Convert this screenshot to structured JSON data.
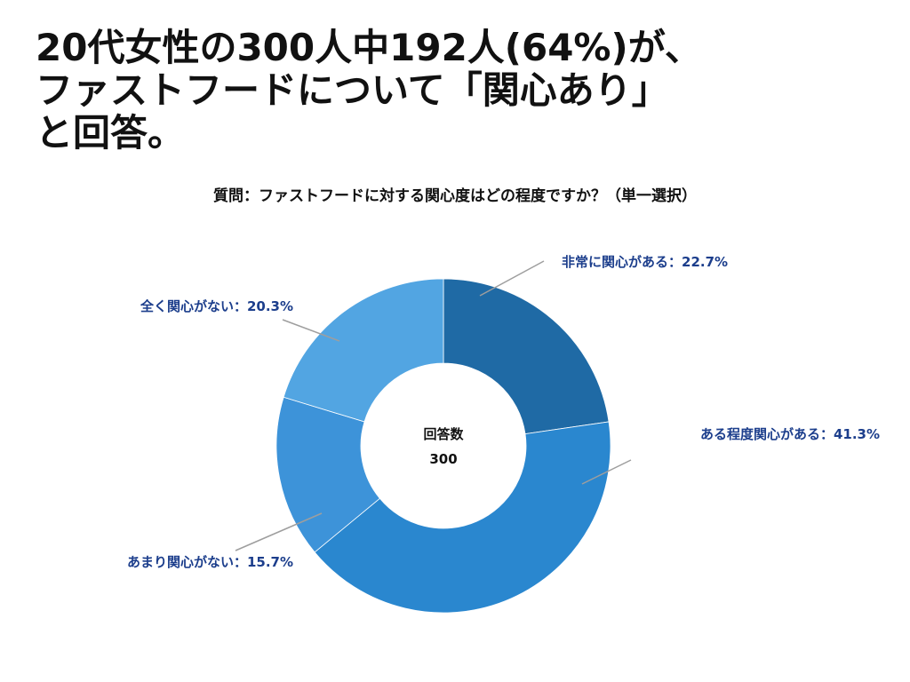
{
  "headline": {
    "line1": "20代女性の300人中192人(64%)が、",
    "line2": "ファストフードについて「関心あり」",
    "line3": "と回答。"
  },
  "chart_data": {
    "type": "donut",
    "title": "質問：ファストフードに対する関心度はどの程度ですか？（単一選択）",
    "center_label": "回答数",
    "center_value": "300",
    "slices": [
      {
        "name": "非常に関心がある",
        "value": 22.7,
        "label": "非常に関心がある：22.7%",
        "color": "#1f6aa5"
      },
      {
        "name": "ある程度関心がある",
        "value": 41.3,
        "label": "ある程度関心がある：41.3%",
        "color": "#2a87cf"
      },
      {
        "name": "あまり関心がない",
        "value": 15.7,
        "label": "あまり関心がない：15.7%",
        "color": "#3d93d9"
      },
      {
        "name": "全く関心がない",
        "value": 20.3,
        "label": "全く関心がない：20.3%",
        "color": "#52a5e2"
      }
    ],
    "label_color": "#1c3e8c",
    "leader_color": "#9e9e9e"
  }
}
